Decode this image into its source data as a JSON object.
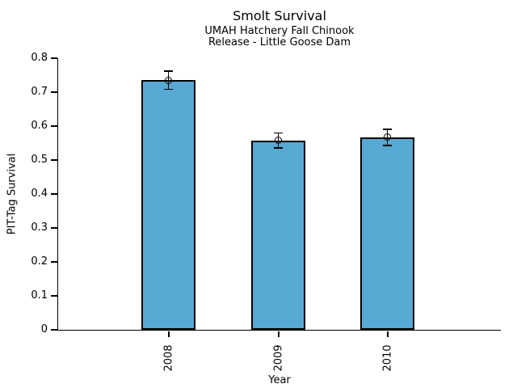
{
  "chart_data": {
    "type": "bar",
    "title": "Smolt Survival",
    "subtitle1": "UMAH Hatchery Fall Chinook",
    "subtitle2": "Release - Little Goose Dam",
    "xlabel": "Year",
    "ylabel": "PIT-Tag Survival",
    "categories": [
      "2008",
      "2009",
      "2010"
    ],
    "values": [
      0.735,
      0.558,
      0.567
    ],
    "error_bars": [
      0.027,
      0.022,
      0.024
    ],
    "ylim": [
      0,
      0.8
    ],
    "yticks": [
      0,
      0.1,
      0.2,
      0.3,
      0.4,
      0.5,
      0.6,
      0.7,
      0.8
    ],
    "ytick_labels": [
      "0",
      "0.1",
      "0.2",
      "0.3",
      "0.4",
      "0.5",
      "0.6",
      "0.7",
      "0.8"
    ],
    "grid": false,
    "legend": "none",
    "marker": "open-circle",
    "bar_color": "#58A8D4",
    "bar_edge_color": "#000000",
    "error_color": "#000000",
    "axis_color": "#000000"
  }
}
